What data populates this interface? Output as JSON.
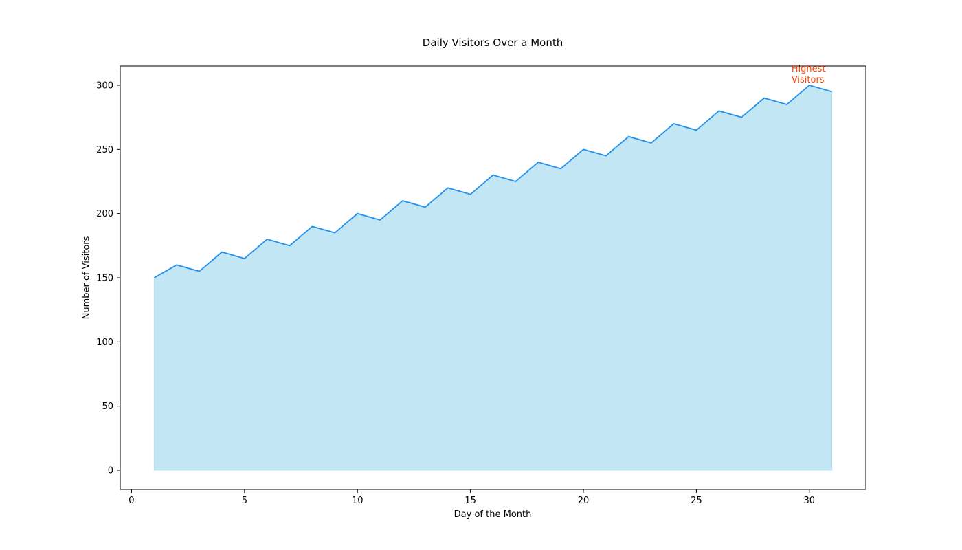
{
  "chart_data": {
    "type": "area",
    "title": "Daily Visitors Over a Month",
    "xlabel": "Day of the Month",
    "ylabel": "Number of Visitors",
    "xlim": [
      -0.5,
      32.5
    ],
    "ylim": [
      -15,
      315
    ],
    "x_ticks": [
      0,
      5,
      10,
      15,
      20,
      25,
      30
    ],
    "y_ticks": [
      0,
      50,
      100,
      150,
      200,
      250,
      300
    ],
    "grid": false,
    "series": [
      {
        "x": [
          1,
          2,
          3,
          4,
          5,
          6,
          7,
          8,
          9,
          10,
          11,
          12,
          13,
          14,
          15,
          16,
          17,
          18,
          19,
          20,
          21,
          22,
          23,
          24,
          25,
          26,
          27,
          28,
          29,
          30,
          31
        ],
        "values": [
          150,
          160,
          155,
          170,
          165,
          180,
          175,
          190,
          185,
          200,
          195,
          210,
          205,
          220,
          215,
          230,
          225,
          240,
          235,
          250,
          245,
          260,
          255,
          270,
          265,
          280,
          275,
          290,
          285,
          300,
          295
        ],
        "line_color": "#1f8ff0",
        "fill_color": "#87ceeb"
      }
    ],
    "annotations": [
      {
        "lines": [
          "Highest",
          "Visitors"
        ],
        "x": 30,
        "y": 300,
        "color": "#ff4500"
      }
    ]
  }
}
